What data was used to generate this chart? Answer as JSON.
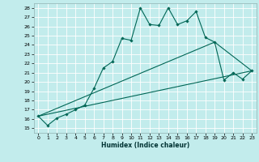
{
  "title": "",
  "xlabel": "Humidex (Indice chaleur)",
  "bg_color": "#c2ecec",
  "grid_color": "#ffffff",
  "line_color": "#006655",
  "xlim": [
    -0.5,
    23.5
  ],
  "ylim": [
    14.5,
    28.5
  ],
  "xticks": [
    0,
    1,
    2,
    3,
    4,
    5,
    6,
    7,
    8,
    9,
    10,
    11,
    12,
    13,
    14,
    15,
    16,
    17,
    18,
    19,
    20,
    21,
    22,
    23
  ],
  "yticks": [
    15,
    16,
    17,
    18,
    19,
    20,
    21,
    22,
    23,
    24,
    25,
    26,
    27,
    28
  ],
  "main_x": [
    0,
    1,
    2,
    3,
    4,
    5,
    6,
    7,
    8,
    9,
    10,
    11,
    12,
    13,
    14,
    15,
    16,
    17,
    18,
    19,
    20,
    21,
    22,
    23
  ],
  "main_y": [
    16.3,
    15.3,
    16.1,
    16.5,
    17.0,
    17.5,
    19.3,
    21.5,
    22.2,
    24.7,
    24.5,
    28.0,
    26.2,
    26.1,
    28.0,
    26.2,
    26.6,
    27.6,
    24.8,
    24.3,
    20.2,
    21.0,
    20.3,
    21.2
  ],
  "line2_x": [
    0,
    23
  ],
  "line2_y": [
    16.3,
    21.2
  ],
  "line3_x": [
    0,
    19,
    23
  ],
  "line3_y": [
    16.3,
    24.3,
    21.2
  ],
  "tick_fontsize": 4.5,
  "xlabel_fontsize": 5.5
}
